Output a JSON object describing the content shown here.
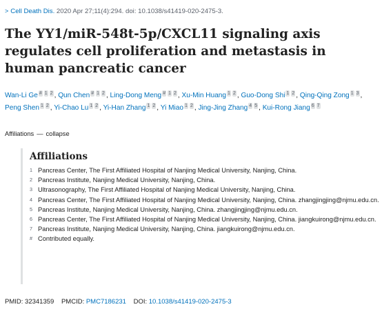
{
  "citation": {
    "journal": "Cell Death Dis.",
    "details": " 2020 Apr 27;11(4):294. doi: 10.1038/s41419-020-2475-3."
  },
  "title": "The YY1/miR-548t-5p/CXCL11 signaling axis regulates cell proliferation and metastasis in human pancreatic cancer",
  "authors": [
    {
      "name": "Wan-Li Ge",
      "marks": [
        "#",
        "1",
        "2"
      ]
    },
    {
      "name": "Qun Chen",
      "marks": [
        "#",
        "1",
        "2"
      ]
    },
    {
      "name": "Ling-Dong Meng",
      "marks": [
        "#",
        "1",
        "2"
      ]
    },
    {
      "name": "Xu-Min Huang",
      "marks": [
        "1",
        "2"
      ]
    },
    {
      "name": "Guo-Dong Shi",
      "marks": [
        "1",
        "2"
      ]
    },
    {
      "name": "Qing-Qing Zong",
      "marks": [
        "1",
        "3"
      ]
    },
    {
      "name": "Peng Shen",
      "marks": [
        "1",
        "2"
      ]
    },
    {
      "name": "Yi-Chao Lu",
      "marks": [
        "1",
        "2"
      ]
    },
    {
      "name": "Yi-Han Zhang",
      "marks": [
        "1",
        "2"
      ]
    },
    {
      "name": "Yi Miao",
      "marks": [
        "1",
        "2"
      ]
    },
    {
      "name": "Jing-Jing Zhang",
      "marks": [
        "4",
        "5"
      ]
    },
    {
      "name": "Kui-Rong Jiang",
      "marks": [
        "6",
        "7"
      ]
    }
  ],
  "affiliations_toggle": {
    "label": "Affiliations",
    "dash": "—",
    "action": "collapse"
  },
  "affiliations": {
    "heading": "Affiliations",
    "items": [
      {
        "num": "1",
        "text": "Pancreas Center, The First Affiliated Hospital of Nanjing Medical University, Nanjing, China."
      },
      {
        "num": "2",
        "text": "Pancreas Institute, Nanjing Medical University, Nanjing, China."
      },
      {
        "num": "3",
        "text": "Ultrasonography, The First Affiliated Hospital of Nanjing Medical University, Nanjing, China."
      },
      {
        "num": "4",
        "text": "Pancreas Center, The First Affiliated Hospital of Nanjing Medical University, Nanjing, China. zhangjingjing@njmu.edu.cn."
      },
      {
        "num": "5",
        "text": "Pancreas Institute, Nanjing Medical University, Nanjing, China. zhangjingjing@njmu.edu.cn."
      },
      {
        "num": "6",
        "text": "Pancreas Center, The First Affiliated Hospital of Nanjing Medical University, Nanjing, China. jiangkuirong@njmu.edu.cn."
      },
      {
        "num": "7",
        "text": "Pancreas Institute, Nanjing Medical University, Nanjing, China. jiangkuirong@njmu.edu.cn."
      },
      {
        "num": "#",
        "text": "Contributed equally."
      }
    ]
  },
  "ids": {
    "pmid_label": "PMID:",
    "pmid": "32341359",
    "pmcid_label": "PMCID:",
    "pmcid": "PMC7186231",
    "doi_label": "DOI:",
    "doi": "10.1038/s41419-020-2475-3"
  },
  "colors": {
    "link": "#0071bc",
    "text": "#212121",
    "muted": "#5b616b"
  }
}
